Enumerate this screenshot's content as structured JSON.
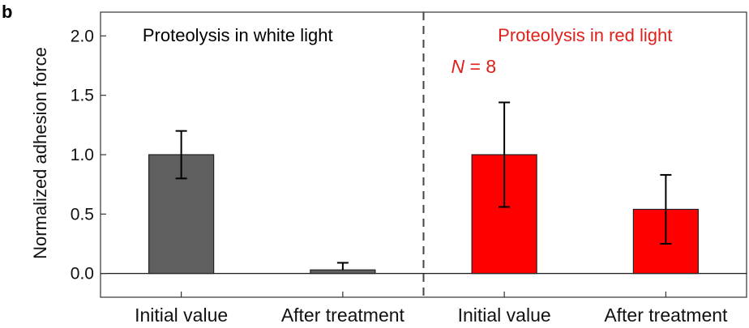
{
  "panel_letter": "b",
  "colors": {
    "white_light_bar": "#5f5f5f",
    "red_light_bar": "#ff0000",
    "red_text": "#e0201a",
    "axis": "#333333",
    "error_bar": "#000000"
  },
  "chart_data": {
    "type": "bar",
    "ylabel": "Normalized adhesion force",
    "ylim": [
      -0.2,
      2.2
    ],
    "yticks": [
      0.0,
      0.5,
      1.0,
      1.5,
      2.0
    ],
    "ytick_labels": [
      "0.0",
      "0.5",
      "1.0",
      "1.5",
      "2.0"
    ],
    "grid": false,
    "groups": [
      {
        "title": "Proteolysis in white light",
        "title_color": "#000000",
        "annotation": "",
        "bar_color": "#5f5f5f",
        "categories": [
          "Initial value",
          "After treatment"
        ],
        "values": [
          1.0,
          0.03
        ],
        "err_low": [
          0.8,
          0.03
        ],
        "err_high": [
          1.2,
          0.09
        ]
      },
      {
        "title": "Proteolysis in red light",
        "title_color": "#e0201a",
        "annotation": "N = 8",
        "annotation_italic": "N",
        "annotation_rest": " = 8",
        "bar_color": "#ff0000",
        "categories": [
          "Initial value",
          "After treatment"
        ],
        "values": [
          1.0,
          0.54
        ],
        "err_low": [
          0.56,
          0.25
        ],
        "err_high": [
          1.44,
          0.83
        ]
      }
    ]
  }
}
